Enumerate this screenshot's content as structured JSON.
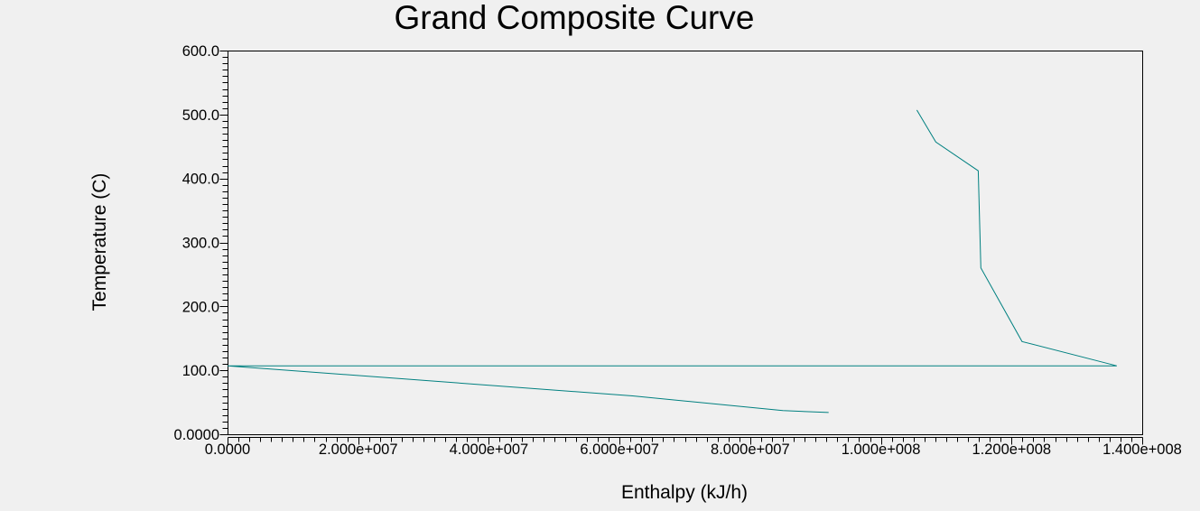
{
  "page": {
    "background_color": "#f0f0f0"
  },
  "chart_data": {
    "type": "line",
    "title": "Grand Composite Curve",
    "xlabel": "Enthalpy (kJ/h)",
    "ylabel": "Temperature (C)",
    "xlim": [
      0,
      140000000
    ],
    "ylim": [
      0,
      600
    ],
    "grid": false,
    "legend": "none",
    "axis_color": "#000000",
    "plot_background": "#f0f0f0",
    "x_tick_labels": [
      "0.0000",
      "2.000e+007",
      "4.000e+007",
      "6.000e+007",
      "8.000e+007",
      "1.000e+008",
      "1.200e+008",
      "1.400e+008"
    ],
    "x_tick_values": [
      0,
      20000000,
      40000000,
      60000000,
      80000000,
      100000000,
      120000000,
      140000000
    ],
    "y_tick_labels": [
      "0.0000",
      "100.0",
      "200.0",
      "300.0",
      "400.0",
      "500.0",
      "600.0"
    ],
    "y_tick_values": [
      0,
      100,
      200,
      300,
      400,
      500,
      600
    ],
    "series": [
      {
        "name": "grand_composite_curve",
        "color": "#008080",
        "points": [
          [
            105500000,
            507
          ],
          [
            108400000,
            457
          ],
          [
            114900000,
            412
          ],
          [
            115300000,
            260
          ],
          [
            121600000,
            145
          ],
          [
            136100000,
            107
          ],
          [
            0,
            107
          ],
          [
            62000000,
            60
          ],
          [
            85000000,
            37
          ],
          [
            92000000,
            34
          ]
        ]
      }
    ]
  }
}
